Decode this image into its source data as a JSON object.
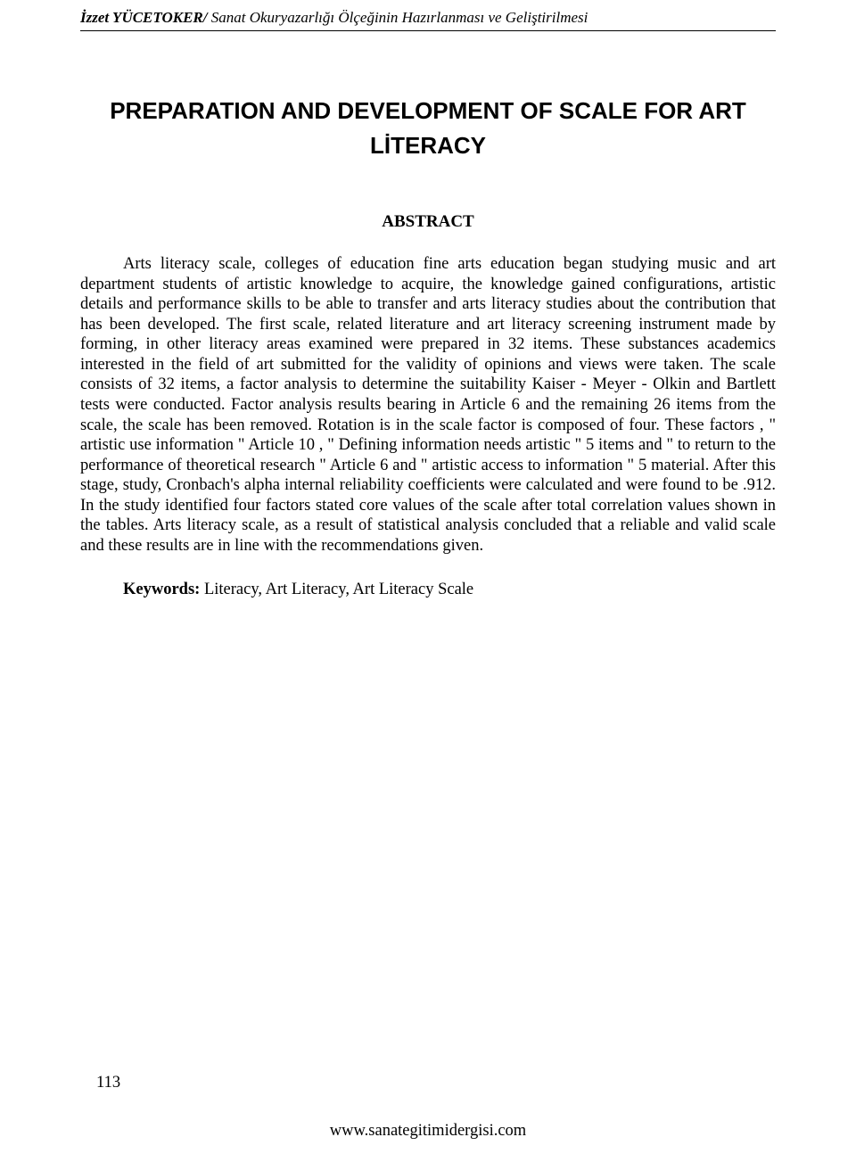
{
  "header": {
    "author": "İzzet YÜCETOKER/",
    "subtitle": " Sanat Okuryazarlığı Ölçeğinin Hazırlanması ve Geliştirilmesi"
  },
  "title": "PREPARATION AND DEVELOPMENT OF SCALE FOR ART LİTERACY",
  "abstract": {
    "heading": "ABSTRACT",
    "body": "Arts literacy scale, colleges of education fine arts education began studying music and art department students of artistic knowledge to acquire, the knowledge gained configurations, artistic details and performance skills to be able to transfer and arts literacy studies about the contribution that has been developed. The first scale, related literature and art literacy screening instrument made by forming, in other literacy areas examined were prepared in 32 items. These substances academics interested in the field of art submitted for the validity of opinions and views were taken. The scale consists of 32 items, a factor analysis to determine the suitability Kaiser - Meyer - Olkin and Bartlett tests were conducted. Factor analysis results bearing in Article 6 and the remaining 26 items from the scale, the scale has been removed. Rotation is in the scale factor is composed of four. These factors , \" artistic use information \" Article 10 , \" Defining information needs artistic \" 5 items and \" to return to the performance of theoretical research \" Article 6 and \" artistic access to information \" 5 material. After this stage, study, Cronbach's alpha internal reliability coefficients were calculated and were found to be .912. In the study identified four factors stated core values of the scale after total correlation values shown in the tables. Arts literacy scale, as a result of statistical analysis concluded that a reliable and valid scale and these results are in line with the recommendations given."
  },
  "keywords": {
    "label": "Keywords: ",
    "text": "Literacy, Art Literacy, Art Literacy Scale"
  },
  "pageNumber": "113",
  "footer": "www.sanategitimidergisi.com"
}
